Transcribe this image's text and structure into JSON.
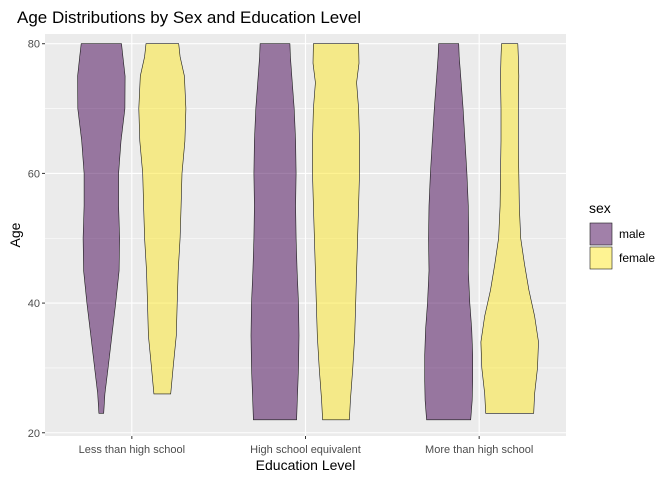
{
  "chart_data": {
    "type": "violin",
    "title": "Age Distributions by Sex and Education Level",
    "xlabel": "Education Level",
    "ylabel": "Age",
    "categories": [
      "Less than high school",
      "High school equivalent",
      "More than high school"
    ],
    "ylim": [
      19.5,
      81.5
    ],
    "yticks": [
      20,
      40,
      60,
      80
    ],
    "grid": true,
    "legend": {
      "title": "sex",
      "position": "right"
    },
    "series": [
      {
        "name": "male",
        "color": "#440154",
        "alpha": 0.5,
        "violins": [
          {
            "category": "Less than high school",
            "min": 23,
            "max": 80,
            "profile": [
              [
                23,
                0.1
              ],
              [
                26,
                0.15
              ],
              [
                30,
                0.28
              ],
              [
                35,
                0.44
              ],
              [
                40,
                0.6
              ],
              [
                45,
                0.74
              ],
              [
                50,
                0.76
              ],
              [
                55,
                0.72
              ],
              [
                60,
                0.72
              ],
              [
                65,
                0.82
              ],
              [
                70,
                0.98
              ],
              [
                75,
                0.99
              ],
              [
                78,
                0.9
              ],
              [
                80,
                0.84
              ]
            ]
          },
          {
            "category": "High school equivalent",
            "min": 22,
            "max": 80,
            "profile": [
              [
                22,
                0.9
              ],
              [
                25,
                0.93
              ],
              [
                30,
                0.98
              ],
              [
                35,
                1.0
              ],
              [
                40,
                0.98
              ],
              [
                45,
                0.92
              ],
              [
                50,
                0.88
              ],
              [
                55,
                0.86
              ],
              [
                60,
                0.88
              ],
              [
                65,
                0.86
              ],
              [
                70,
                0.8
              ],
              [
                75,
                0.7
              ],
              [
                78,
                0.64
              ],
              [
                80,
                0.62
              ]
            ]
          },
          {
            "category": "More than high school",
            "min": 22,
            "max": 80,
            "profile": [
              [
                22,
                0.92
              ],
              [
                25,
                0.98
              ],
              [
                28,
                1.0
              ],
              [
                32,
                1.0
              ],
              [
                36,
                0.96
              ],
              [
                40,
                0.88
              ],
              [
                45,
                0.82
              ],
              [
                50,
                0.84
              ],
              [
                55,
                0.82
              ],
              [
                60,
                0.76
              ],
              [
                65,
                0.68
              ],
              [
                70,
                0.6
              ],
              [
                75,
                0.5
              ],
              [
                78,
                0.44
              ],
              [
                80,
                0.42
              ]
            ]
          }
        ]
      },
      {
        "name": "female",
        "color": "#FDE725",
        "alpha": 0.5,
        "violins": [
          {
            "category": "Less than high school",
            "min": 26,
            "max": 80,
            "profile": [
              [
                26,
                0.35
              ],
              [
                30,
                0.45
              ],
              [
                35,
                0.58
              ],
              [
                40,
                0.62
              ],
              [
                45,
                0.66
              ],
              [
                50,
                0.74
              ],
              [
                55,
                0.78
              ],
              [
                60,
                0.82
              ],
              [
                65,
                0.94
              ],
              [
                70,
                0.98
              ],
              [
                75,
                0.92
              ],
              [
                78,
                0.74
              ],
              [
                80,
                0.68
              ]
            ]
          },
          {
            "category": "High school equivalent",
            "min": 22,
            "max": 80,
            "profile": [
              [
                22,
                0.56
              ],
              [
                25,
                0.6
              ],
              [
                30,
                0.7
              ],
              [
                35,
                0.78
              ],
              [
                40,
                0.82
              ],
              [
                45,
                0.86
              ],
              [
                50,
                0.9
              ],
              [
                55,
                0.94
              ],
              [
                60,
                0.98
              ],
              [
                65,
                0.98
              ],
              [
                70,
                0.94
              ],
              [
                74,
                0.86
              ],
              [
                77,
                0.96
              ],
              [
                80,
                0.94
              ]
            ]
          },
          {
            "category": "More than high school",
            "min": 23,
            "max": 80,
            "profile": [
              [
                23,
                1.0
              ],
              [
                26,
                1.04
              ],
              [
                30,
                1.16
              ],
              [
                34,
                1.2
              ],
              [
                38,
                1.04
              ],
              [
                42,
                0.8
              ],
              [
                46,
                0.62
              ],
              [
                50,
                0.46
              ],
              [
                55,
                0.4
              ],
              [
                60,
                0.38
              ],
              [
                65,
                0.36
              ],
              [
                70,
                0.36
              ],
              [
                75,
                0.38
              ],
              [
                78,
                0.36
              ],
              [
                80,
                0.34
              ]
            ]
          }
        ]
      }
    ]
  }
}
